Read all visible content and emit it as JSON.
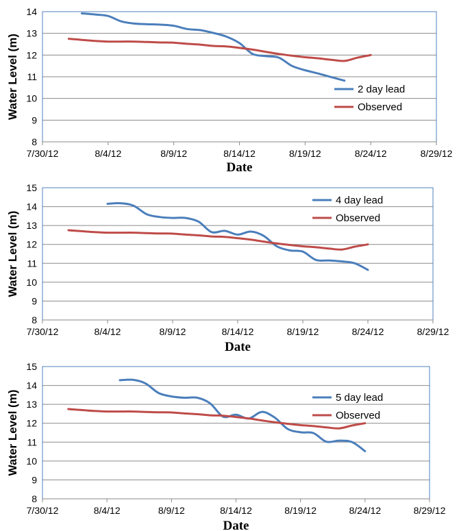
{
  "colors": {
    "forecast": "#4a7ebb",
    "observed": "#be4b48",
    "frame": "#4f81bd",
    "grid": "#8a8a8a"
  },
  "chart_data": [
    {
      "type": "line",
      "xlabel": "Date",
      "ylabel": "Water Level (m)",
      "xlim": [
        "2012-07-30",
        "2012-08-29"
      ],
      "ylim": [
        8,
        14
      ],
      "x_ticks": [
        "7/30/12",
        "8/4/12",
        "8/9/12",
        "8/14/12",
        "8/19/12",
        "8/24/12",
        "8/29/12"
      ],
      "y_ticks": [
        8,
        9,
        10,
        11,
        12,
        13,
        14
      ],
      "grid": true,
      "legend_position": "lower-right",
      "series": [
        {
          "name": "2 day lead",
          "color": "#4a7ebb",
          "x": [
            "2012-08-02",
            "2012-08-03",
            "2012-08-04",
            "2012-08-05",
            "2012-08-06",
            "2012-08-07",
            "2012-08-08",
            "2012-08-09",
            "2012-08-10",
            "2012-08-11",
            "2012-08-12",
            "2012-08-13",
            "2012-08-14",
            "2012-08-15",
            "2012-08-16",
            "2012-08-17",
            "2012-08-18",
            "2012-08-19",
            "2012-08-20",
            "2012-08-21",
            "2012-08-22"
          ],
          "values": [
            13.92,
            13.87,
            13.8,
            13.55,
            13.45,
            13.42,
            13.4,
            13.35,
            13.2,
            13.15,
            13.02,
            12.85,
            12.55,
            12.05,
            11.95,
            11.88,
            11.5,
            11.3,
            11.15,
            10.98,
            10.82
          ]
        },
        {
          "name": "Observed",
          "color": "#be4b48",
          "x": [
            "2012-08-01",
            "2012-08-02",
            "2012-08-03",
            "2012-08-04",
            "2012-08-05",
            "2012-08-06",
            "2012-08-07",
            "2012-08-08",
            "2012-08-09",
            "2012-08-10",
            "2012-08-11",
            "2012-08-12",
            "2012-08-13",
            "2012-08-14",
            "2012-08-15",
            "2012-08-16",
            "2012-08-17",
            "2012-08-18",
            "2012-08-19",
            "2012-08-20",
            "2012-08-21",
            "2012-08-22",
            "2012-08-23",
            "2012-08-24"
          ],
          "values": [
            12.75,
            12.7,
            12.65,
            12.62,
            12.62,
            12.62,
            12.6,
            12.58,
            12.57,
            12.52,
            12.48,
            12.42,
            12.4,
            12.33,
            12.25,
            12.15,
            12.05,
            11.97,
            11.9,
            11.85,
            11.78,
            11.73,
            11.88,
            12.0
          ]
        }
      ]
    },
    {
      "type": "line",
      "xlabel": "Date",
      "ylabel": "Water Level (m)",
      "xlim": [
        "2012-07-30",
        "2012-08-29"
      ],
      "ylim": [
        8,
        15
      ],
      "x_ticks": [
        "7/30/12",
        "8/4/12",
        "8/9/12",
        "8/14/12",
        "8/19/12",
        "8/24/12",
        "8/29/12"
      ],
      "y_ticks": [
        8,
        9,
        10,
        11,
        12,
        13,
        14,
        15
      ],
      "grid": true,
      "legend_position": "top-right",
      "series": [
        {
          "name": "4 day lead",
          "color": "#4a7ebb",
          "x": [
            "2012-08-04",
            "2012-08-05",
            "2012-08-06",
            "2012-08-07",
            "2012-08-08",
            "2012-08-09",
            "2012-08-10",
            "2012-08-11",
            "2012-08-12",
            "2012-08-13",
            "2012-08-14",
            "2012-08-15",
            "2012-08-16",
            "2012-08-17",
            "2012-08-18",
            "2012-08-19",
            "2012-08-20",
            "2012-08-21",
            "2012-08-22",
            "2012-08-23",
            "2012-08-24"
          ],
          "values": [
            14.15,
            14.18,
            14.05,
            13.6,
            13.45,
            13.4,
            13.4,
            13.2,
            12.65,
            12.72,
            12.52,
            12.68,
            12.45,
            11.9,
            11.68,
            11.62,
            11.18,
            11.15,
            11.1,
            11.0,
            10.65
          ]
        },
        {
          "name": "Observed",
          "color": "#be4b48",
          "x": [
            "2012-08-01",
            "2012-08-02",
            "2012-08-03",
            "2012-08-04",
            "2012-08-05",
            "2012-08-06",
            "2012-08-07",
            "2012-08-08",
            "2012-08-09",
            "2012-08-10",
            "2012-08-11",
            "2012-08-12",
            "2012-08-13",
            "2012-08-14",
            "2012-08-15",
            "2012-08-16",
            "2012-08-17",
            "2012-08-18",
            "2012-08-19",
            "2012-08-20",
            "2012-08-21",
            "2012-08-22",
            "2012-08-23",
            "2012-08-24"
          ],
          "values": [
            12.75,
            12.7,
            12.65,
            12.62,
            12.62,
            12.62,
            12.6,
            12.58,
            12.57,
            12.52,
            12.48,
            12.42,
            12.4,
            12.33,
            12.25,
            12.15,
            12.05,
            11.97,
            11.9,
            11.85,
            11.78,
            11.73,
            11.88,
            12.0
          ]
        }
      ]
    },
    {
      "type": "line",
      "xlabel": "Date",
      "ylabel": "Water Level (m)",
      "xlim": [
        "2012-07-30",
        "2012-08-29"
      ],
      "ylim": [
        8,
        15
      ],
      "x_ticks": [
        "7/30/12",
        "8/4/12",
        "8/9/12",
        "8/14/12",
        "8/19/12",
        "8/24/12",
        "8/29/12"
      ],
      "y_ticks": [
        8,
        9,
        10,
        11,
        12,
        13,
        14,
        15
      ],
      "grid": true,
      "legend_position": "top-right",
      "series": [
        {
          "name": "5 day lead",
          "color": "#4a7ebb",
          "x": [
            "2012-08-05",
            "2012-08-06",
            "2012-08-07",
            "2012-08-08",
            "2012-08-09",
            "2012-08-10",
            "2012-08-11",
            "2012-08-12",
            "2012-08-13",
            "2012-08-14",
            "2012-08-15",
            "2012-08-16",
            "2012-08-17",
            "2012-08-18",
            "2012-08-19",
            "2012-08-20",
            "2012-08-21",
            "2012-08-22",
            "2012-08-23",
            "2012-08-24"
          ],
          "values": [
            14.28,
            14.3,
            14.1,
            13.6,
            13.42,
            13.35,
            13.35,
            13.05,
            12.35,
            12.45,
            12.25,
            12.6,
            12.3,
            11.7,
            11.52,
            11.48,
            11.02,
            11.08,
            11.0,
            10.52
          ]
        },
        {
          "name": "Observed",
          "color": "#be4b48",
          "x": [
            "2012-08-01",
            "2012-08-02",
            "2012-08-03",
            "2012-08-04",
            "2012-08-05",
            "2012-08-06",
            "2012-08-07",
            "2012-08-08",
            "2012-08-09",
            "2012-08-10",
            "2012-08-11",
            "2012-08-12",
            "2012-08-13",
            "2012-08-14",
            "2012-08-15",
            "2012-08-16",
            "2012-08-17",
            "2012-08-18",
            "2012-08-19",
            "2012-08-20",
            "2012-08-21",
            "2012-08-22",
            "2012-08-23",
            "2012-08-24"
          ],
          "values": [
            12.75,
            12.7,
            12.65,
            12.62,
            12.62,
            12.62,
            12.6,
            12.58,
            12.57,
            12.52,
            12.48,
            12.42,
            12.4,
            12.33,
            12.25,
            12.15,
            12.05,
            11.97,
            11.9,
            11.85,
            11.78,
            11.73,
            11.88,
            12.0
          ]
        }
      ]
    }
  ]
}
